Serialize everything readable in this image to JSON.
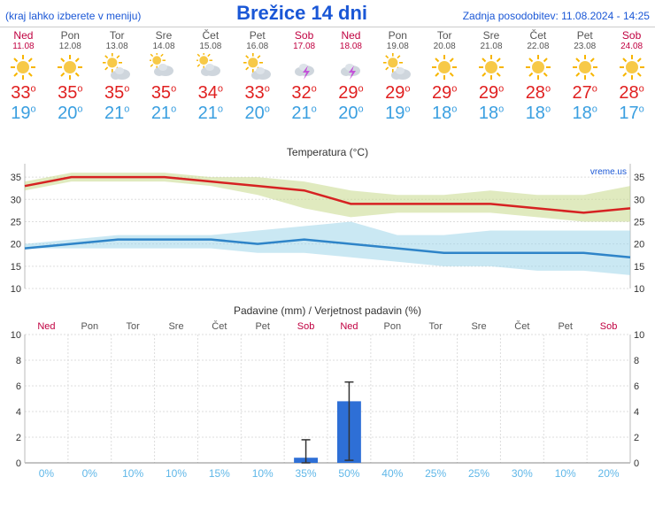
{
  "header": {
    "left_note": "(kraj lahko izberete v meniju)",
    "title": "Brežice 14 dni",
    "updated": "Zadnja posodobitev: 11.08.2024 - 14:25"
  },
  "watermark": "vreme.us",
  "days": [
    {
      "name": "Ned",
      "date": "11.08",
      "weekend": true,
      "icon": "sun",
      "high": 33,
      "low": 19
    },
    {
      "name": "Pon",
      "date": "12.08",
      "weekend": false,
      "icon": "sun",
      "high": 35,
      "low": 20
    },
    {
      "name": "Tor",
      "date": "13.08",
      "weekend": false,
      "icon": "partly",
      "high": 35,
      "low": 21
    },
    {
      "name": "Sre",
      "date": "14.08",
      "weekend": false,
      "icon": "cloud",
      "high": 35,
      "low": 21
    },
    {
      "name": "Čet",
      "date": "15.08",
      "weekend": false,
      "icon": "cloud",
      "high": 34,
      "low": 21
    },
    {
      "name": "Pet",
      "date": "16.08",
      "weekend": false,
      "icon": "partly",
      "high": 33,
      "low": 20
    },
    {
      "name": "Sob",
      "date": "17.08",
      "weekend": true,
      "icon": "storm",
      "high": 32,
      "low": 21
    },
    {
      "name": "Ned",
      "date": "18.08",
      "weekend": true,
      "icon": "storm",
      "high": 29,
      "low": 20
    },
    {
      "name": "Pon",
      "date": "19.08",
      "weekend": false,
      "icon": "partly",
      "high": 29,
      "low": 19
    },
    {
      "name": "Tor",
      "date": "20.08",
      "weekend": false,
      "icon": "sun",
      "high": 29,
      "low": 18
    },
    {
      "name": "Sre",
      "date": "21.08",
      "weekend": false,
      "icon": "sun",
      "high": 29,
      "low": 18
    },
    {
      "name": "Čet",
      "date": "22.08",
      "weekend": false,
      "icon": "sun",
      "high": 28,
      "low": 18
    },
    {
      "name": "Pet",
      "date": "23.08",
      "weekend": false,
      "icon": "sun",
      "high": 27,
      "low": 18
    },
    {
      "name": "Sob",
      "date": "24.08",
      "weekend": true,
      "icon": "sun",
      "high": 28,
      "low": 17
    }
  ],
  "temp_chart": {
    "title": "Temperatura (°C)",
    "ylim": [
      10,
      38
    ],
    "yticks": [
      10,
      15,
      20,
      25,
      30,
      35
    ],
    "high_color": "#d62222",
    "low_color": "#2e84c8",
    "high_band_color": "#c6d98a",
    "low_band_color": "#9fd5ea",
    "band_opacity": 0.55,
    "line_width": 2.5,
    "high_series": [
      33,
      35,
      35,
      35,
      34,
      33,
      32,
      29,
      29,
      29,
      29,
      28,
      27,
      28
    ],
    "high_upper": [
      34,
      36,
      36,
      36,
      35,
      35,
      34,
      32,
      31,
      31,
      32,
      31,
      31,
      33
    ],
    "high_lower": [
      32,
      34,
      34,
      34,
      33,
      31,
      28,
      26,
      27,
      27,
      27,
      26,
      25,
      25
    ],
    "low_series": [
      19,
      20,
      21,
      21,
      21,
      20,
      21,
      20,
      19,
      18,
      18,
      18,
      18,
      17
    ],
    "low_upper": [
      20,
      21,
      22,
      22,
      22,
      23,
      24,
      25,
      22,
      22,
      23,
      23,
      23,
      23
    ],
    "low_lower": [
      19,
      19,
      19,
      19,
      19,
      18,
      18,
      17,
      16,
      15,
      15,
      14,
      14,
      13
    ]
  },
  "precip_chart": {
    "title": "Padavine (mm) / Verjetnost padavin (%)",
    "ylim": [
      0,
      10
    ],
    "yticks": [
      0,
      2,
      4,
      6,
      8,
      10
    ],
    "bar_color": "#2e6fd6",
    "prob_color": "#5fb7e8",
    "precip_mm": [
      0,
      0,
      0,
      0,
      0,
      0,
      0.4,
      4.8,
      0,
      0,
      0,
      0,
      0,
      0
    ],
    "precip_err_hi": [
      0,
      0,
      0,
      0,
      0,
      0,
      1.8,
      6.3,
      0,
      0,
      0,
      0,
      0,
      0
    ],
    "precip_err_lo": [
      0,
      0,
      0,
      0,
      0,
      0,
      0,
      0.2,
      0,
      0,
      0,
      0,
      0,
      0
    ],
    "probability_pct": [
      0,
      0,
      10,
      10,
      15,
      10,
      35,
      50,
      40,
      25,
      25,
      30,
      10,
      20
    ]
  },
  "colors": {
    "weekend_text": "#c00040",
    "weekday_text": "#555555",
    "header_text": "#1a57d6",
    "high_temp": "#e02020",
    "low_temp": "#3a9fe0",
    "grid": "#dddddd",
    "axis": "#bbbbbb"
  }
}
